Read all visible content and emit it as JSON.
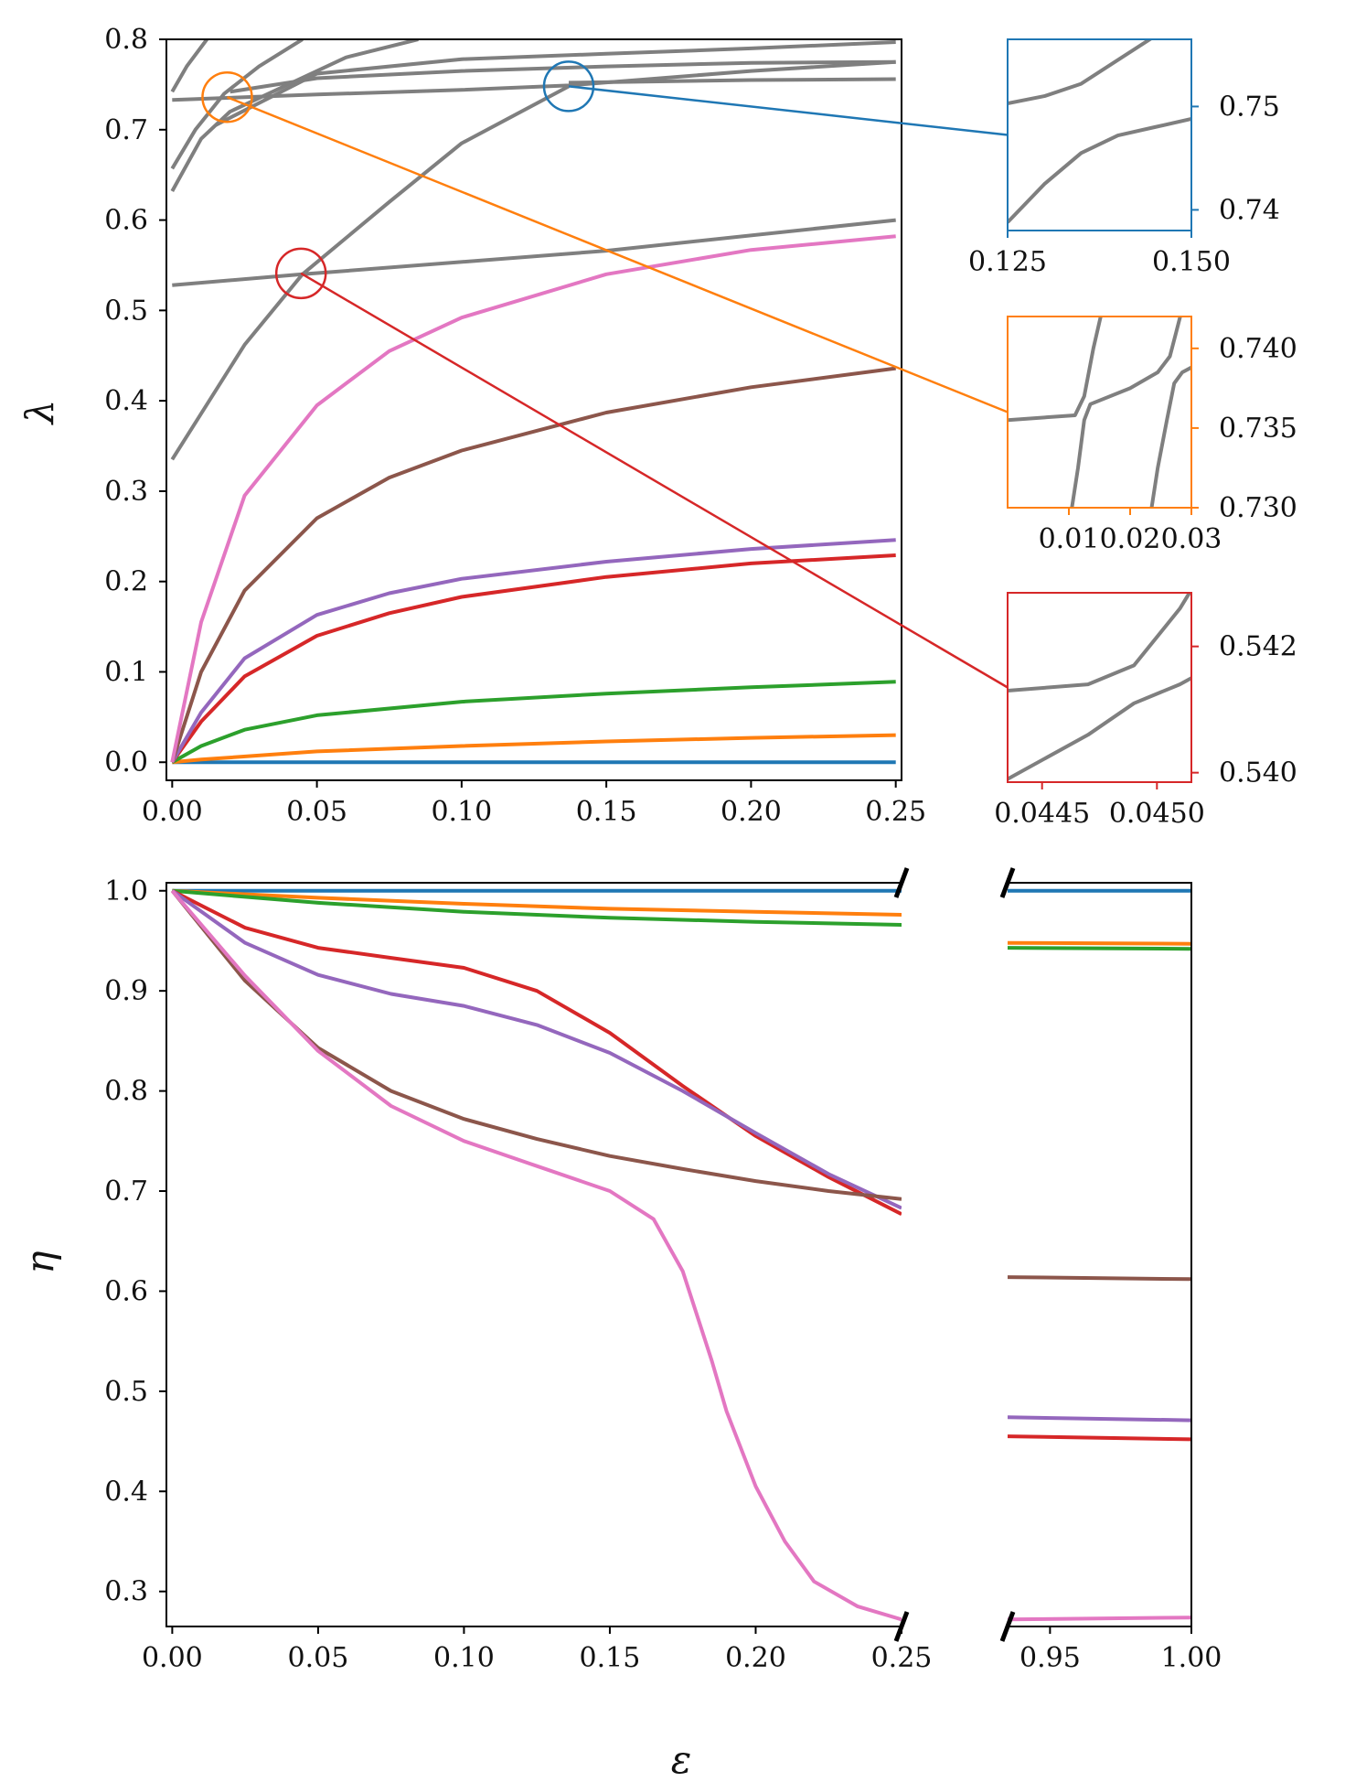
{
  "chart_data": [
    {
      "id": "top",
      "type": "line",
      "ylabel": "λ",
      "xlim": [
        -0.002,
        0.252
      ],
      "ylim": [
        -0.02,
        0.8
      ],
      "x_ticks": [
        "0.00",
        "0.05",
        "0.10",
        "0.15",
        "0.20",
        "0.25"
      ],
      "x_tick_values": [
        0,
        0.05,
        0.1,
        0.15,
        0.2,
        0.25
      ],
      "y_ticks": [
        "0.0",
        "0.1",
        "0.2",
        "0.3",
        "0.4",
        "0.5",
        "0.6",
        "0.7",
        "0.8"
      ],
      "y_tick_values": [
        0,
        0.1,
        0.2,
        0.3,
        0.4,
        0.5,
        0.6,
        0.7,
        0.8
      ],
      "series": [
        {
          "color": "#1f77b4",
          "x": [
            0,
            0.25
          ],
          "y": [
            0,
            0
          ]
        },
        {
          "color": "#ff7f0e",
          "x": [
            0,
            0.01,
            0.05,
            0.1,
            0.15,
            0.2,
            0.25
          ],
          "y": [
            0,
            0.003,
            0.012,
            0.018,
            0.023,
            0.027,
            0.03
          ]
        },
        {
          "color": "#2ca02c",
          "x": [
            0,
            0.01,
            0.025,
            0.05,
            0.1,
            0.15,
            0.2,
            0.25
          ],
          "y": [
            0,
            0.018,
            0.036,
            0.052,
            0.067,
            0.076,
            0.083,
            0.089
          ]
        },
        {
          "color": "#d62728",
          "x": [
            0,
            0.01,
            0.025,
            0.05,
            0.075,
            0.1,
            0.15,
            0.2,
            0.25
          ],
          "y": [
            0,
            0.045,
            0.095,
            0.14,
            0.165,
            0.183,
            0.205,
            0.22,
            0.229
          ]
        },
        {
          "color": "#9467bd",
          "x": [
            0,
            0.01,
            0.025,
            0.05,
            0.075,
            0.1,
            0.15,
            0.2,
            0.25
          ],
          "y": [
            0,
            0.055,
            0.115,
            0.163,
            0.187,
            0.203,
            0.222,
            0.236,
            0.246
          ]
        },
        {
          "color": "#8c564b",
          "x": [
            0,
            0.01,
            0.025,
            0.05,
            0.075,
            0.1,
            0.15,
            0.2,
            0.25
          ],
          "y": [
            0,
            0.1,
            0.19,
            0.27,
            0.315,
            0.345,
            0.387,
            0.415,
            0.436
          ]
        },
        {
          "color": "#e377c2",
          "x": [
            0,
            0.01,
            0.025,
            0.05,
            0.075,
            0.1,
            0.15,
            0.2,
            0.25
          ],
          "y": [
            0,
            0.155,
            0.295,
            0.395,
            0.455,
            0.492,
            0.54,
            0.567,
            0.582
          ]
        },
        {
          "color": "#7f7f7f",
          "x": [
            0,
            0.045,
            0.15,
            0.25
          ],
          "y": [
            0.528,
            0.54,
            0.566,
            0.6
          ]
        },
        {
          "color": "#7f7f7f",
          "x": [
            0,
            0.025,
            0.045,
            0.075,
            0.1,
            0.137
          ],
          "y": [
            0.335,
            0.462,
            0.54,
            0.62,
            0.685,
            0.748
          ]
        },
        {
          "color": "#7f7f7f",
          "x": [
            0.137,
            0.16,
            0.2,
            0.25
          ],
          "y": [
            0.752,
            0.753,
            0.755,
            0.756
          ]
        },
        {
          "color": "#7f7f7f",
          "x": [
            0,
            0.05,
            0.1,
            0.137,
            0.2,
            0.25
          ],
          "y": [
            0.733,
            0.739,
            0.744,
            0.749,
            0.765,
            0.775
          ]
        },
        {
          "color": "#7f7f7f",
          "x": [
            0.02,
            0.05,
            0.1,
            0.15,
            0.2,
            0.25
          ],
          "y": [
            0.742,
            0.757,
            0.765,
            0.77,
            0.774,
            0.775
          ]
        },
        {
          "color": "#7f7f7f",
          "x": [
            0.015,
            0.05,
            0.1,
            0.15,
            0.2,
            0.25
          ],
          "y": [
            0.705,
            0.762,
            0.778,
            0.784,
            0.79,
            0.797
          ]
        },
        {
          "color": "#7f7f7f",
          "x": [
            0,
            0.01,
            0.02,
            0.04,
            0.06,
            0.085
          ],
          "y": [
            0.632,
            0.69,
            0.72,
            0.75,
            0.78,
            0.8
          ]
        },
        {
          "color": "#7f7f7f",
          "x": [
            0,
            0.008,
            0.018,
            0.03,
            0.045
          ],
          "y": [
            0.657,
            0.7,
            0.74,
            0.77,
            0.8
          ]
        },
        {
          "color": "#7f7f7f",
          "x": [
            0,
            0.005,
            0.012
          ],
          "y": [
            0.742,
            0.77,
            0.8
          ]
        }
      ],
      "highlights": [
        {
          "x": 0.137,
          "y": 0.748,
          "color": "#1f77b4",
          "target": "inset-a"
        },
        {
          "x": 0.019,
          "y": 0.736,
          "color": "#ff7f0e",
          "target": "inset-b"
        },
        {
          "x": 0.0445,
          "y": 0.541,
          "color": "#d62728",
          "target": "inset-c"
        }
      ]
    },
    {
      "id": "inset-a",
      "type": "line",
      "frame_color": "#1f77b4",
      "xlim": [
        0.125,
        0.15
      ],
      "ylim": [
        0.738,
        0.7565
      ],
      "x_ticks": [
        "0.125",
        "0.150"
      ],
      "x_tick_values": [
        0.125,
        0.15
      ],
      "y_ticks": [
        "0.74",
        "0.75"
      ],
      "y_tick_values": [
        0.74,
        0.75
      ],
      "series": [
        {
          "color": "#7f7f7f",
          "x": [
            0.125,
            0.13,
            0.135,
            0.14,
            0.145,
            0.15
          ],
          "y": [
            0.7388,
            0.7425,
            0.7455,
            0.7472,
            0.748,
            0.7488
          ]
        },
        {
          "color": "#7f7f7f",
          "x": [
            0.125,
            0.13,
            0.135,
            0.14,
            0.145,
            0.15
          ],
          "y": [
            0.7503,
            0.751,
            0.7522,
            0.7545,
            0.7568,
            0.7585
          ]
        }
      ]
    },
    {
      "id": "inset-b",
      "type": "line",
      "frame_color": "#ff7f0e",
      "xlim": [
        0.0,
        0.03
      ],
      "ylim": [
        0.73,
        0.742
      ],
      "x_ticks": [
        "0.01",
        "0.02",
        "0.03"
      ],
      "x_tick_values": [
        0.01,
        0.02,
        0.03
      ],
      "y_ticks": [
        "0.730",
        "0.735",
        "0.740"
      ],
      "y_tick_values": [
        0.73,
        0.735,
        0.74
      ],
      "series": [
        {
          "color": "#7f7f7f",
          "x": [
            0.0,
            0.011,
            0.0125,
            0.014,
            0.0155
          ],
          "y": [
            0.7355,
            0.7358,
            0.737,
            0.74,
            0.7425
          ]
        },
        {
          "color": "#7f7f7f",
          "x": [
            0.0105,
            0.0115,
            0.0125,
            0.0135,
            0.02,
            0.0245,
            0.0265,
            0.0275,
            0.0285
          ],
          "y": [
            0.73,
            0.7325,
            0.7355,
            0.7365,
            0.7375,
            0.7385,
            0.7395,
            0.741,
            0.7425
          ]
        },
        {
          "color": "#7f7f7f",
          "x": [
            0.0235,
            0.0245,
            0.026,
            0.0272,
            0.0285,
            0.03
          ],
          "y": [
            0.73,
            0.7325,
            0.7355,
            0.7378,
            0.7385,
            0.7388
          ]
        }
      ]
    },
    {
      "id": "inset-c",
      "type": "line",
      "frame_color": "#d62728",
      "xlim": [
        0.04435,
        0.04515
      ],
      "ylim": [
        0.53985,
        0.54285
      ],
      "x_ticks": [
        "0.0445",
        "0.0450"
      ],
      "x_tick_values": [
        0.0445,
        0.045
      ],
      "y_ticks": [
        "0.540",
        "0.542"
      ],
      "y_tick_values": [
        0.54,
        0.542
      ],
      "series": [
        {
          "color": "#7f7f7f",
          "x": [
            0.04435,
            0.0447,
            0.0449,
            0.0451,
            0.04515
          ],
          "y": [
            0.5413,
            0.5414,
            0.5417,
            0.5426,
            0.5429
          ]
        },
        {
          "color": "#7f7f7f",
          "x": [
            0.04435,
            0.0447,
            0.0449,
            0.0451,
            0.04515
          ],
          "y": [
            0.5399,
            0.5406,
            0.5411,
            0.5414,
            0.5415
          ]
        }
      ]
    },
    {
      "id": "bottom-left",
      "type": "line",
      "ylabel": "η",
      "xlim": [
        -0.002,
        0.25
      ],
      "ylim": [
        0.265,
        1.008
      ],
      "x_ticks": [
        "0.00",
        "0.05",
        "0.10",
        "0.15",
        "0.20",
        "0.25"
      ],
      "x_tick_values": [
        0,
        0.05,
        0.1,
        0.15,
        0.2,
        0.25
      ],
      "y_ticks": [
        "0.3",
        "0.4",
        "0.5",
        "0.6",
        "0.7",
        "0.8",
        "0.9",
        "1.0"
      ],
      "y_tick_values": [
        0.3,
        0.4,
        0.5,
        0.6,
        0.7,
        0.8,
        0.9,
        1.0
      ],
      "series": [
        {
          "color": "#1f77b4",
          "x": [
            0,
            0.25
          ],
          "y": [
            1.0,
            1.0
          ]
        },
        {
          "color": "#ff7f0e",
          "x": [
            0,
            0.05,
            0.1,
            0.15,
            0.2,
            0.25
          ],
          "y": [
            1.0,
            0.993,
            0.987,
            0.982,
            0.979,
            0.976
          ]
        },
        {
          "color": "#2ca02c",
          "x": [
            0,
            0.05,
            0.1,
            0.15,
            0.2,
            0.25
          ],
          "y": [
            1.0,
            0.988,
            0.979,
            0.973,
            0.969,
            0.966
          ]
        },
        {
          "color": "#d62728",
          "x": [
            0,
            0.025,
            0.05,
            0.075,
            0.1,
            0.125,
            0.15,
            0.175,
            0.2,
            0.225,
            0.25
          ],
          "y": [
            1.0,
            0.963,
            0.943,
            0.933,
            0.923,
            0.9,
            0.858,
            0.805,
            0.755,
            0.714,
            0.677
          ]
        },
        {
          "color": "#9467bd",
          "x": [
            0,
            0.025,
            0.05,
            0.075,
            0.1,
            0.125,
            0.15,
            0.175,
            0.2,
            0.225,
            0.25
          ],
          "y": [
            1.0,
            0.948,
            0.916,
            0.897,
            0.885,
            0.866,
            0.838,
            0.8,
            0.758,
            0.717,
            0.683
          ]
        },
        {
          "color": "#8c564b",
          "x": [
            0,
            0.025,
            0.05,
            0.075,
            0.1,
            0.125,
            0.15,
            0.175,
            0.2,
            0.225,
            0.25
          ],
          "y": [
            1.0,
            0.91,
            0.843,
            0.8,
            0.772,
            0.752,
            0.735,
            0.722,
            0.71,
            0.7,
            0.692
          ]
        },
        {
          "color": "#e377c2",
          "x": [
            0,
            0.025,
            0.05,
            0.075,
            0.1,
            0.125,
            0.15,
            0.165,
            0.175,
            0.185,
            0.19,
            0.2,
            0.21,
            0.22,
            0.235,
            0.25
          ],
          "y": [
            1.0,
            0.915,
            0.84,
            0.785,
            0.75,
            0.725,
            0.7,
            0.672,
            0.62,
            0.53,
            0.48,
            0.405,
            0.35,
            0.31,
            0.285,
            0.272
          ]
        }
      ]
    },
    {
      "id": "bottom-right",
      "type": "line",
      "xlim": [
        0.935,
        1.0
      ],
      "ylim": [
        0.265,
        1.008
      ],
      "x_ticks": [
        "0.95",
        "1.00"
      ],
      "x_tick_values": [
        0.95,
        1.0
      ],
      "series": [
        {
          "color": "#1f77b4",
          "x": [
            0.935,
            1.0
          ],
          "y": [
            1.0,
            1.0
          ]
        },
        {
          "color": "#ff7f0e",
          "x": [
            0.935,
            1.0
          ],
          "y": [
            0.948,
            0.947
          ]
        },
        {
          "color": "#2ca02c",
          "x": [
            0.935,
            1.0
          ],
          "y": [
            0.943,
            0.942
          ]
        },
        {
          "color": "#8c564b",
          "x": [
            0.935,
            1.0
          ],
          "y": [
            0.614,
            0.612
          ]
        },
        {
          "color": "#9467bd",
          "x": [
            0.935,
            1.0
          ],
          "y": [
            0.474,
            0.471
          ]
        },
        {
          "color": "#d62728",
          "x": [
            0.935,
            1.0
          ],
          "y": [
            0.455,
            0.452
          ]
        },
        {
          "color": "#e377c2",
          "x": [
            0.935,
            1.0
          ],
          "y": [
            0.272,
            0.274
          ]
        }
      ]
    }
  ],
  "xlabel": "ε"
}
